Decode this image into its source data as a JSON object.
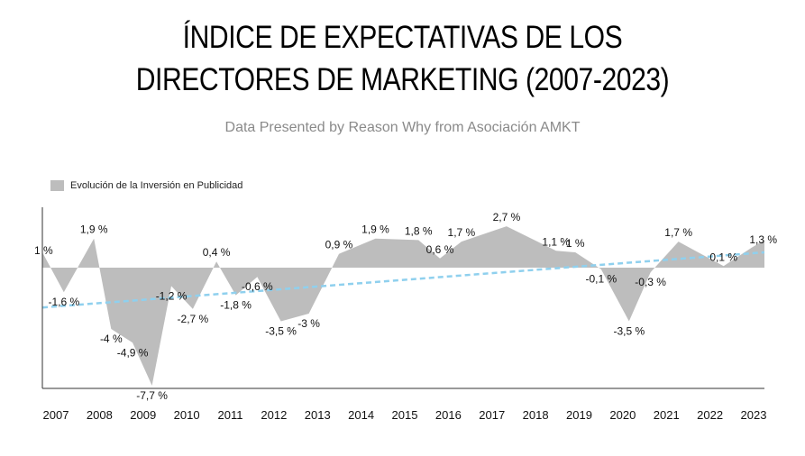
{
  "title_line1": "ÍNDICE DE EXPECTATIVAS DE LOS",
  "title_line2": "DIRECTORES DE MARKETING (2007-2023)",
  "subtitle": "Data Presented by Reason Why from Asociación AMKT",
  "legend_label": "Evolución de la Inversión en Publicidad",
  "colors": {
    "area": "#bdbdbd",
    "trend": "#8fd0ee",
    "axis": "#333333",
    "text": "#111111"
  },
  "chart_data": {
    "type": "area",
    "title": "ÍNDICE DE EXPECTATIVAS DE LOS DIRECTORES DE MARKETING (2007-2023)",
    "subtitle": "Data Presented by Reason Why from Asociación AMKT",
    "xlabel": "",
    "ylabel": "",
    "xlim": [
      2006.6,
      2023.4
    ],
    "ylim": [
      -8.0,
      4.0
    ],
    "grid": false,
    "legend": "top-left",
    "x_tick_labels": [
      "2007",
      "2008",
      "2009",
      "2010",
      "2011",
      "2012",
      "2013",
      "2014",
      "2015",
      "2016",
      "2017",
      "2018",
      "2019",
      "2020",
      "2021",
      "2022",
      "2023"
    ],
    "series": [
      {
        "name": "Evolución de la Inversión en Publicidad",
        "points": [
          {
            "x": 2006.6,
            "y": 1.0,
            "label": "1 %"
          },
          {
            "x": 2007.1,
            "y": -1.6,
            "label": "-1,6 %"
          },
          {
            "x": 2007.8,
            "y": 1.9,
            "label": "1,9 %"
          },
          {
            "x": 2008.2,
            "y": -4.0,
            "label": "-4 %"
          },
          {
            "x": 2008.7,
            "y": -4.9,
            "label": "-4,9 %"
          },
          {
            "x": 2009.15,
            "y": -7.7,
            "label": "-7,7 %"
          },
          {
            "x": 2009.6,
            "y": -1.2,
            "label": "-1,2 %"
          },
          {
            "x": 2010.1,
            "y": -2.7,
            "label": "-2,7 %"
          },
          {
            "x": 2010.65,
            "y": 0.4,
            "label": "0,4 %"
          },
          {
            "x": 2011.1,
            "y": -1.8,
            "label": "-1,8 %"
          },
          {
            "x": 2011.6,
            "y": -0.6,
            "label": "-0,6 %"
          },
          {
            "x": 2012.15,
            "y": -3.5,
            "label": "-3,5 %"
          },
          {
            "x": 2012.8,
            "y": -3.0,
            "label": "-3 %"
          },
          {
            "x": 2013.5,
            "y": 0.9,
            "label": "0,9 %"
          },
          {
            "x": 2014.35,
            "y": 1.9,
            "label": "1,9 %"
          },
          {
            "x": 2015.35,
            "y": 1.8,
            "label": "1,8 %"
          },
          {
            "x": 2015.85,
            "y": 0.6,
            "label": "0,6 %"
          },
          {
            "x": 2016.35,
            "y": 1.7,
            "label": "1,7 %"
          },
          {
            "x": 2017.4,
            "y": 2.7,
            "label": "2,7 %"
          },
          {
            "x": 2018.55,
            "y": 1.1,
            "label": "1,1 %"
          },
          {
            "x": 2019.0,
            "y": 1.0,
            "label": "1 %"
          },
          {
            "x": 2019.6,
            "y": -0.1,
            "label": "-0,1 %"
          },
          {
            "x": 2020.25,
            "y": -3.5,
            "label": "-3,5 %"
          },
          {
            "x": 2020.75,
            "y": -0.3,
            "label": "-0,3 %"
          },
          {
            "x": 2021.4,
            "y": 1.7,
            "label": "1,7 %"
          },
          {
            "x": 2022.45,
            "y": 0.1,
            "label": "0,1 %"
          },
          {
            "x": 2023.1,
            "y": 1.3,
            "label": "1,3 %"
          }
        ]
      }
    ],
    "trendline": {
      "style": "dashed",
      "color": "#8fd0ee",
      "points": [
        {
          "x": 2006.6,
          "y": -2.6
        },
        {
          "x": 2023.4,
          "y": 1.0
        }
      ]
    }
  }
}
